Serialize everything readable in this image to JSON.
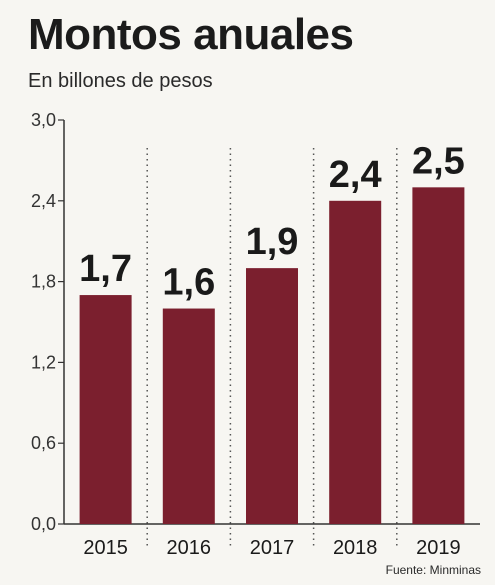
{
  "chart_data": {
    "type": "bar",
    "title": "Montos anuales",
    "subtitle": "En billones de pesos",
    "categories": [
      "2015",
      "2016",
      "2017",
      "2018",
      "2019"
    ],
    "values": [
      1.7,
      1.6,
      1.9,
      2.4,
      2.5
    ],
    "data_labels": [
      "1,7",
      "1,6",
      "1,9",
      "2,4",
      "2,5"
    ],
    "yticks": [
      "0,0",
      "0,6",
      "1,2",
      "1,8",
      "2,4",
      "3,0"
    ],
    "ylim": [
      0,
      3.0
    ],
    "xlabel": "",
    "ylabel": "",
    "grid": false,
    "bar_color": "#7b1f2e",
    "source": "Fuente: Minminas"
  }
}
